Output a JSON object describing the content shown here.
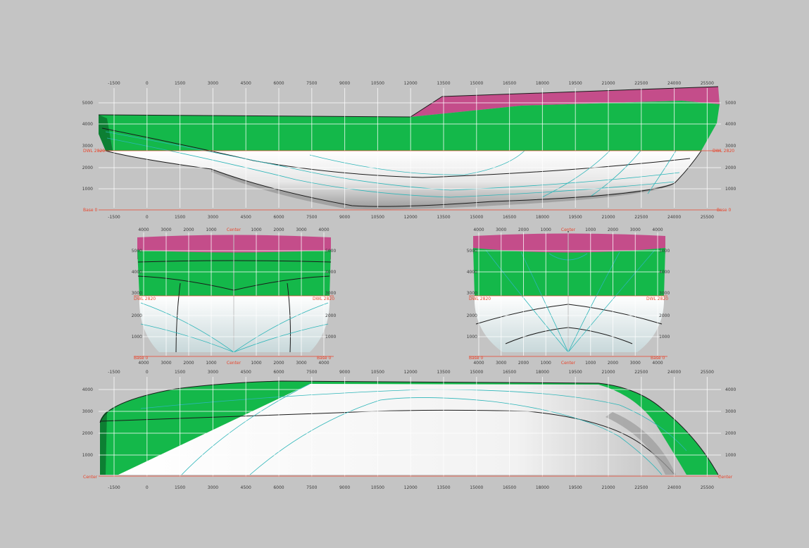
{
  "colors": {
    "background": "#c4c4c4",
    "hull_topsides": "#14b84a",
    "hull_dark": "#0d7f33",
    "hull_underwater": "#ffffff",
    "superstructure": "#c44d8a",
    "grid": "#ffffff",
    "reference": "#e8452c",
    "waterlines": "#2cb5b8",
    "section_lines": "#1a1a1a"
  },
  "profile_view": {
    "x_ticks_top": [
      "-1500",
      "0",
      "1500",
      "3000",
      "4500",
      "6000",
      "7500",
      "9000",
      "10500",
      "12000",
      "13500",
      "15000",
      "16500",
      "18000",
      "19500",
      "21000",
      "22500",
      "24000",
      "25500"
    ],
    "x_ticks_bottom": [
      "-1500",
      "0",
      "1500",
      "3000",
      "4500",
      "6000",
      "7500",
      "9000",
      "10500",
      "12000",
      "13500",
      "15000",
      "16500",
      "18000",
      "19500",
      "21000",
      "22500",
      "24000",
      "25500"
    ],
    "y_ticks": [
      "5000",
      "4000",
      "3000",
      "2000",
      "1000"
    ],
    "dwl_label": "DWL 2820",
    "base_label": "Base 0"
  },
  "body_plan_aft": {
    "x_ticks": [
      "4000",
      "3000",
      "2000",
      "1000",
      "Center",
      "1000",
      "2000",
      "3000",
      "4000"
    ],
    "y_ticks": [
      "5000",
      "4000",
      "3000",
      "2000",
      "1000"
    ],
    "dwl_label": "DWL 2820",
    "base_label": "Base 0"
  },
  "body_plan_fwd": {
    "x_ticks": [
      "4000",
      "3000",
      "2000",
      "1000",
      "Center",
      "1000",
      "2000",
      "3000",
      "4000"
    ],
    "y_ticks": [
      "5000",
      "4000",
      "3000",
      "2000",
      "1000"
    ],
    "dwl_label": "DWL 2820",
    "base_label": "Base 0"
  },
  "plan_view": {
    "x_ticks_top": [
      "-1500",
      "0",
      "1500",
      "3000",
      "4500",
      "6000",
      "7500",
      "9000",
      "10500",
      "12000",
      "13500",
      "15000",
      "16500",
      "18000",
      "19500",
      "21000",
      "22500",
      "24000",
      "25500"
    ],
    "x_ticks_bottom": [
      "-1500",
      "0",
      "1500",
      "3000",
      "4500",
      "6000",
      "7500",
      "9000",
      "10500",
      "12000",
      "13500",
      "15000",
      "16500",
      "18000",
      "19500",
      "21000",
      "22500",
      "24000",
      "25500"
    ],
    "y_ticks": [
      "4000",
      "3000",
      "2000",
      "1000"
    ],
    "center_label": "Center"
  }
}
